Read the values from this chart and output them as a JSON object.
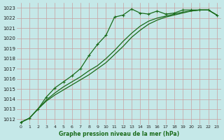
{
  "title": "Graphe pression niveau de la mer (hPa)",
  "bg_color": "#c5e8e8",
  "grid_color": "#c8a0a0",
  "line_color": "#1a6b1a",
  "xlim": [
    -0.5,
    23.5
  ],
  "ylim": [
    1011.5,
    1023.5
  ],
  "yticks": [
    1012,
    1013,
    1014,
    1015,
    1016,
    1017,
    1018,
    1019,
    1020,
    1021,
    1022,
    1023
  ],
  "xticks": [
    0,
    1,
    2,
    3,
    4,
    5,
    6,
    7,
    8,
    9,
    10,
    11,
    12,
    13,
    14,
    15,
    16,
    17,
    18,
    19,
    20,
    21,
    22,
    23
  ],
  "s1_x": [
    0,
    1,
    2,
    3,
    4,
    5,
    6,
    7,
    8,
    9,
    10,
    11,
    12,
    13,
    14,
    15,
    16,
    17,
    18,
    19,
    20,
    21,
    22,
    23
  ],
  "s1_y": [
    1011.7,
    1012.1,
    1013.0,
    1014.2,
    1015.1,
    1015.7,
    1016.3,
    1017.0,
    1018.3,
    1019.4,
    1020.3,
    1022.1,
    1022.3,
    1022.9,
    1022.5,
    1022.4,
    1022.7,
    1022.4,
    1022.5,
    1022.8,
    1022.8,
    1022.8,
    1022.8,
    1022.3
  ],
  "s2_x": [
    0,
    1,
    2,
    3,
    4,
    5,
    6,
    7,
    8,
    9,
    10,
    11,
    12,
    13,
    14,
    15,
    16,
    17,
    18,
    19,
    20,
    21,
    22,
    23
  ],
  "s2_y": [
    1011.7,
    1012.1,
    1013.0,
    1013.9,
    1014.6,
    1015.2,
    1015.7,
    1016.2,
    1016.8,
    1017.3,
    1018.0,
    1018.8,
    1019.7,
    1020.5,
    1021.2,
    1021.7,
    1022.0,
    1022.2,
    1022.4,
    1022.6,
    1022.7,
    1022.8,
    1022.8,
    1022.3
  ],
  "s3_x": [
    0,
    1,
    2,
    3,
    4,
    5,
    6,
    7,
    8,
    9,
    10,
    11,
    12,
    13,
    14,
    15,
    16,
    17,
    18,
    19,
    20,
    21,
    22,
    23
  ],
  "s3_y": [
    1011.7,
    1012.1,
    1013.0,
    1013.8,
    1014.4,
    1014.9,
    1015.4,
    1015.9,
    1016.4,
    1017.0,
    1017.6,
    1018.4,
    1019.2,
    1020.1,
    1020.8,
    1021.4,
    1021.8,
    1022.1,
    1022.3,
    1022.5,
    1022.7,
    1022.8,
    1022.8,
    1022.3
  ]
}
